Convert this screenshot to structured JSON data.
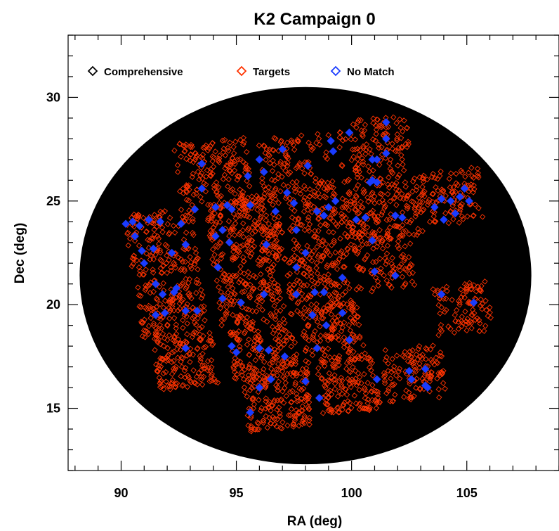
{
  "chart_data": {
    "type": "scatter",
    "title": "K2 Campaign 0",
    "xlabel": "RA (deg)",
    "ylabel": "Dec (deg)",
    "xlim": [
      87.7,
      109.0
    ],
    "ylim": [
      12.0,
      33.0
    ],
    "x_ticks": [
      90,
      95,
      100,
      105
    ],
    "y_ticks": [
      15,
      20,
      25,
      30
    ],
    "x_tick_labels": [
      "90",
      "95",
      "100",
      "105"
    ],
    "y_tick_labels": [
      "15",
      "20",
      "25",
      "30"
    ],
    "legend": {
      "position": "top-left",
      "entries": [
        {
          "label": "Comprehensive",
          "color": "#000000"
        },
        {
          "label": "Targets",
          "color": "#ff3300"
        },
        {
          "label": "No Match",
          "color": "#1a3cff"
        }
      ]
    },
    "field_of_view": {
      "center": [
        98.0,
        21.4
      ],
      "radius_x": 9.8,
      "radius_y": 9.1,
      "color": "#000000"
    },
    "target_modules": [
      {
        "center": [
          94.0,
          26.4
        ],
        "size": [
          3.2,
          3.2
        ],
        "count": 160
      },
      {
        "center": [
          97.6,
          26.6
        ],
        "size": [
          3.1,
          3.1
        ],
        "count": 130
      },
      {
        "center": [
          101.0,
          27.5
        ],
        "size": [
          3.0,
          3.0
        ],
        "count": 130
      },
      {
        "center": [
          104.3,
          25.2
        ],
        "size": [
          2.6,
          2.6
        ],
        "count": 110
      },
      {
        "center": [
          91.8,
          23.0
        ],
        "size": [
          3.0,
          3.0
        ],
        "count": 160
      },
      {
        "center": [
          95.4,
          23.6
        ],
        "size": [
          3.2,
          3.2
        ],
        "count": 230
      },
      {
        "center": [
          98.8,
          23.8
        ],
        "size": [
          3.0,
          3.0
        ],
        "count": 150
      },
      {
        "center": [
          101.6,
          24.6
        ],
        "size": [
          2.8,
          2.8
        ],
        "count": 140
      },
      {
        "center": [
          92.2,
          19.9
        ],
        "size": [
          2.8,
          2.8
        ],
        "count": 150
      },
      {
        "center": [
          95.6,
          20.5
        ],
        "size": [
          2.8,
          2.8
        ],
        "count": 140
      },
      {
        "center": [
          98.6,
          21.0
        ],
        "size": [
          2.8,
          2.8
        ],
        "count": 140
      },
      {
        "center": [
          101.4,
          22.0
        ],
        "size": [
          2.6,
          2.6
        ],
        "count": 100
      },
      {
        "center": [
          92.8,
          17.3
        ],
        "size": [
          2.6,
          2.6
        ],
        "count": 150
      },
      {
        "center": [
          96.2,
          17.8
        ],
        "size": [
          2.8,
          2.8
        ],
        "count": 150
      },
      {
        "center": [
          99.2,
          18.5
        ],
        "size": [
          2.6,
          2.6
        ],
        "count": 130
      },
      {
        "center": [
          104.8,
          19.8
        ],
        "size": [
          2.4,
          2.4
        ],
        "count": 100
      },
      {
        "center": [
          96.8,
          15.4
        ],
        "size": [
          2.8,
          2.8
        ],
        "count": 170
      },
      {
        "center": [
          99.9,
          16.1
        ],
        "size": [
          2.6,
          2.6
        ],
        "count": 140
      },
      {
        "center": [
          102.7,
          16.7
        ],
        "size": [
          2.6,
          2.6
        ],
        "count": 120
      }
    ],
    "no_match_points": [
      [
        93.5,
        26.8
      ],
      [
        93.5,
        25.6
      ],
      [
        95.5,
        26.2
      ],
      [
        96.0,
        27.0
      ],
      [
        96.2,
        26.4
      ],
      [
        97.0,
        27.5
      ],
      [
        98.1,
        26.7
      ],
      [
        99.1,
        27.9
      ],
      [
        99.2,
        27.4
      ],
      [
        99.9,
        28.3
      ],
      [
        100.9,
        27.0
      ],
      [
        101.1,
        27.0
      ],
      [
        101.5,
        28.0
      ],
      [
        101.5,
        27.3
      ],
      [
        101.5,
        28.8
      ],
      [
        103.6,
        24.7
      ],
      [
        103.9,
        25.1
      ],
      [
        104.3,
        25.0
      ],
      [
        104.5,
        24.4
      ],
      [
        104.7,
        25.2
      ],
      [
        104.9,
        25.6
      ],
      [
        105.1,
        25.0
      ],
      [
        104.0,
        24.1
      ],
      [
        90.2,
        23.9
      ],
      [
        90.5,
        24.0
      ],
      [
        90.8,
        23.8
      ],
      [
        91.2,
        24.1
      ],
      [
        90.6,
        23.3
      ],
      [
        90.9,
        22.6
      ],
      [
        91.0,
        22.0
      ],
      [
        91.4,
        22.7
      ],
      [
        91.7,
        24.0
      ],
      [
        92.6,
        23.9
      ],
      [
        92.8,
        22.9
      ],
      [
        92.2,
        22.5
      ],
      [
        93.2,
        24.6
      ],
      [
        94.1,
        24.7
      ],
      [
        94.6,
        24.8
      ],
      [
        94.8,
        24.6
      ],
      [
        94.4,
        23.6
      ],
      [
        94.7,
        23.0
      ],
      [
        94.1,
        23.3
      ],
      [
        95.6,
        24.8
      ],
      [
        96.7,
        24.5
      ],
      [
        96.3,
        22.9
      ],
      [
        97.2,
        25.4
      ],
      [
        97.5,
        24.9
      ],
      [
        97.6,
        23.6
      ],
      [
        98.5,
        24.5
      ],
      [
        98.8,
        24.3
      ],
      [
        99.0,
        24.7
      ],
      [
        99.3,
        25.0
      ],
      [
        100.2,
        24.1
      ],
      [
        100.6,
        24.2
      ],
      [
        100.8,
        25.9
      ],
      [
        101.1,
        25.9
      ],
      [
        100.9,
        26.0
      ],
      [
        101.9,
        24.3
      ],
      [
        102.2,
        24.2
      ],
      [
        91.5,
        21.0
      ],
      [
        91.8,
        20.5
      ],
      [
        92.3,
        20.6
      ],
      [
        92.4,
        20.8
      ],
      [
        91.5,
        19.5
      ],
      [
        91.9,
        19.6
      ],
      [
        92.8,
        19.7
      ],
      [
        93.3,
        19.7
      ],
      [
        94.2,
        21.8
      ],
      [
        94.4,
        20.3
      ],
      [
        95.2,
        20.1
      ],
      [
        96.2,
        20.5
      ],
      [
        97.6,
        21.8
      ],
      [
        97.6,
        20.5
      ],
      [
        98.4,
        20.6
      ],
      [
        98.8,
        20.6
      ],
      [
        98.0,
        22.5
      ],
      [
        99.6,
        21.3
      ],
      [
        100.9,
        23.1
      ],
      [
        101.0,
        21.6
      ],
      [
        101.9,
        21.4
      ],
      [
        92.8,
        17.9
      ],
      [
        94.8,
        18.0
      ],
      [
        95.0,
        17.7
      ],
      [
        96.0,
        17.9
      ],
      [
        96.4,
        17.8
      ],
      [
        96.5,
        16.4
      ],
      [
        97.1,
        17.5
      ],
      [
        98.5,
        17.9
      ],
      [
        98.3,
        19.5
      ],
      [
        98.9,
        19.0
      ],
      [
        99.6,
        19.6
      ],
      [
        99.9,
        18.3
      ],
      [
        103.9,
        20.5
      ],
      [
        105.3,
        20.1
      ],
      [
        96.0,
        16.0
      ],
      [
        95.6,
        14.8
      ],
      [
        98.6,
        15.5
      ],
      [
        98.0,
        16.3
      ],
      [
        101.1,
        16.4
      ],
      [
        102.5,
        16.8
      ],
      [
        102.6,
        16.4
      ],
      [
        103.2,
        16.1
      ],
      [
        103.3,
        16.0
      ],
      [
        103.2,
        16.9
      ]
    ]
  }
}
